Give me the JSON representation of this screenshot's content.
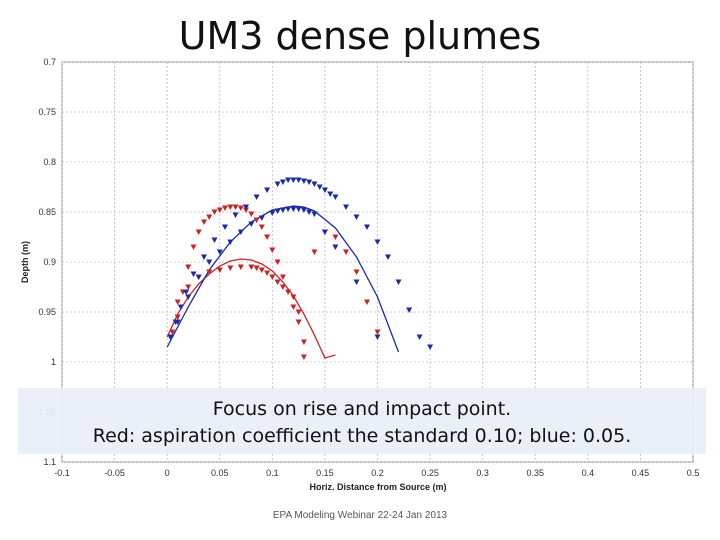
{
  "slide": {
    "title": "UM3 dense plumes",
    "caption_line1": "Focus on rise and impact point.",
    "caption_line2": "Red: aspiration coefficient  the standard 0.10; blue: 0.05.",
    "footer": "EPA Modeling Webinar 22-24 Jan 2013"
  },
  "chart_data": {
    "type": "scatter",
    "title": "",
    "xlabel": "Horiz. Distance from Source (m)",
    "ylabel": "Depth (m)",
    "xlim": [
      -0.1,
      0.5
    ],
    "ylim": [
      0.7,
      1.1
    ],
    "y_inverted": true,
    "grid": true,
    "x_ticks": [
      "-0.1",
      "-0.05",
      "0",
      "0.05",
      "0.1",
      "0.15",
      "0.2",
      "0.25",
      "0.3",
      "0.35",
      "0.4",
      "0.45",
      "0.5"
    ],
    "y_ticks": [
      "0.7",
      "0.75",
      "0.8",
      "0.85",
      "0.9",
      "0.95",
      "1",
      "1.05",
      "1.1"
    ],
    "colors": {
      "red": "#cc2222",
      "blue": "#1a2aa8"
    },
    "series": [
      {
        "color": "red",
        "style": "line",
        "x": [
          0.0,
          0.01,
          0.02,
          0.03,
          0.04,
          0.05,
          0.06,
          0.07,
          0.08,
          0.09,
          0.1,
          0.11,
          0.12,
          0.13,
          0.14,
          0.15,
          0.16
        ],
        "y": [
          0.975,
          0.952,
          0.935,
          0.922,
          0.912,
          0.904,
          0.899,
          0.897,
          0.898,
          0.902,
          0.909,
          0.92,
          0.934,
          0.952,
          0.973,
          0.996,
          0.993
        ]
      },
      {
        "color": "blue",
        "style": "line",
        "x": [
          0.0,
          0.02,
          0.04,
          0.06,
          0.08,
          0.1,
          0.12,
          0.13,
          0.14,
          0.16,
          0.18,
          0.2,
          0.22
        ],
        "y": [
          0.985,
          0.945,
          0.908,
          0.88,
          0.86,
          0.848,
          0.844,
          0.845,
          0.849,
          0.866,
          0.895,
          0.935,
          0.99
        ]
      },
      {
        "color": "red",
        "style": "markers",
        "x": [
          0.005,
          0.01,
          0.015,
          0.02,
          0.025,
          0.03,
          0.035,
          0.04,
          0.045,
          0.05,
          0.055,
          0.06,
          0.065,
          0.07,
          0.075,
          0.08,
          0.085,
          0.09,
          0.095,
          0.1,
          0.105,
          0.11,
          0.115,
          0.12,
          0.125,
          0.13,
          0.14,
          0.15,
          0.16,
          0.17,
          0.18,
          0.19,
          0.2,
          0.01,
          0.02,
          0.03,
          0.04,
          0.05,
          0.06,
          0.07,
          0.08,
          0.085,
          0.09,
          0.095,
          0.1,
          0.105,
          0.11,
          0.12,
          0.125,
          0.13
        ],
        "y": [
          0.97,
          0.955,
          0.93,
          0.905,
          0.885,
          0.87,
          0.86,
          0.855,
          0.85,
          0.848,
          0.846,
          0.845,
          0.845,
          0.846,
          0.848,
          0.852,
          0.858,
          0.865,
          0.875,
          0.888,
          0.9,
          0.915,
          0.93,
          0.945,
          0.96,
          0.98,
          0.89,
          0.87,
          0.875,
          0.89,
          0.91,
          0.94,
          0.97,
          0.94,
          0.925,
          0.915,
          0.91,
          0.908,
          0.906,
          0.905,
          0.905,
          0.906,
          0.908,
          0.911,
          0.915,
          0.92,
          0.925,
          0.935,
          0.95,
          0.995
        ]
      },
      {
        "color": "blue",
        "style": "markers",
        "x": [
          0.003,
          0.008,
          0.013,
          0.018,
          0.025,
          0.035,
          0.045,
          0.055,
          0.065,
          0.075,
          0.085,
          0.095,
          0.105,
          0.11,
          0.115,
          0.12,
          0.125,
          0.13,
          0.135,
          0.14,
          0.145,
          0.15,
          0.155,
          0.16,
          0.17,
          0.18,
          0.19,
          0.2,
          0.21,
          0.22,
          0.23,
          0.24,
          0.25,
          0.01,
          0.02,
          0.03,
          0.04,
          0.05,
          0.06,
          0.07,
          0.08,
          0.09,
          0.1,
          0.105,
          0.11,
          0.115,
          0.12,
          0.125,
          0.13,
          0.135,
          0.14,
          0.15,
          0.16,
          0.18,
          0.2
        ],
        "y": [
          0.975,
          0.96,
          0.945,
          0.93,
          0.912,
          0.895,
          0.878,
          0.865,
          0.853,
          0.845,
          0.835,
          0.828,
          0.822,
          0.82,
          0.818,
          0.818,
          0.818,
          0.819,
          0.82,
          0.822,
          0.825,
          0.828,
          0.832,
          0.835,
          0.845,
          0.855,
          0.865,
          0.88,
          0.895,
          0.92,
          0.948,
          0.975,
          0.985,
          0.96,
          0.935,
          0.915,
          0.9,
          0.89,
          0.88,
          0.87,
          0.862,
          0.856,
          0.851,
          0.849,
          0.848,
          0.847,
          0.847,
          0.847,
          0.848,
          0.85,
          0.852,
          0.87,
          0.885,
          0.92,
          0.975
        ]
      }
    ]
  }
}
